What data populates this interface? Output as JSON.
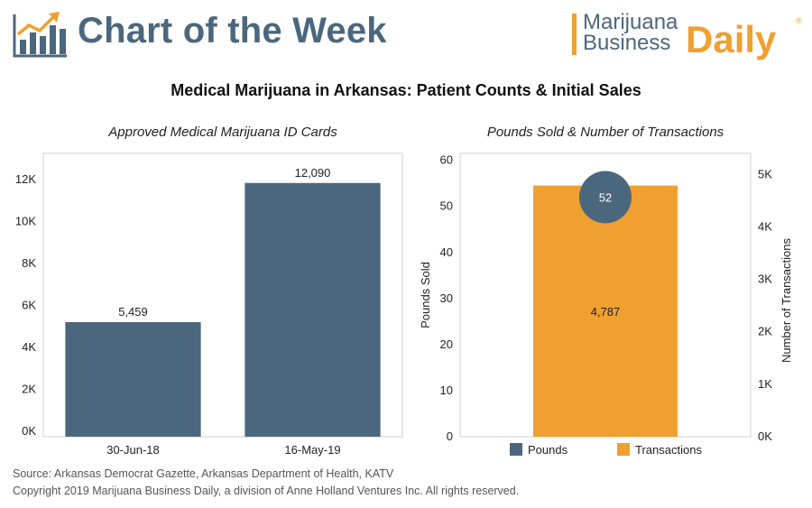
{
  "header": {
    "title": "Chart of the Week",
    "brand_line1": "Marijuana",
    "brand_line2": "Business",
    "brand_daily": "Daily",
    "brand_reg": "®"
  },
  "main_title": "Medical Marijuana in Arkansas: Patient Counts & Initial Sales",
  "colors": {
    "slate": "#4b677d",
    "orange": "#f0a030"
  },
  "chart_data": [
    {
      "type": "bar",
      "title": "Approved Medical Marijuana ID Cards",
      "categories": [
        "30-Jun-18",
        "16-May-19"
      ],
      "values": [
        5459,
        12090
      ],
      "value_labels": [
        "5,459",
        "12,090"
      ],
      "yticks": [
        0,
        2000,
        4000,
        6000,
        8000,
        10000,
        12000
      ],
      "ytick_labels": [
        "0K",
        "2K",
        "4K",
        "6K",
        "8K",
        "10K",
        "12K"
      ],
      "ylim": [
        0,
        13500
      ],
      "color": "#4b677d"
    },
    {
      "type": "bar",
      "title": "Pounds Sold & Number of Transactions",
      "ylabel": "Pounds Sold",
      "y2label": "Number of Transactions",
      "series": [
        {
          "name": "Pounds",
          "axis": "left",
          "values": [
            52
          ],
          "value_label": "52",
          "color": "#4b677d",
          "marker": "circle"
        },
        {
          "name": "Transactions",
          "axis": "right",
          "values": [
            4787
          ],
          "value_label": "4,787",
          "color": "#f0a030",
          "marker": "bar"
        }
      ],
      "yticks": [
        0,
        10,
        20,
        30,
        40,
        50,
        60
      ],
      "ylim": [
        0,
        61.5
      ],
      "y2ticks": [
        0,
        1000,
        2000,
        3000,
        4000,
        5000
      ],
      "y2tick_labels": [
        "0K",
        "1K",
        "2K",
        "3K",
        "4K",
        "5K"
      ],
      "y2lim": [
        0,
        5400
      ],
      "legend": [
        "Pounds",
        "Transactions"
      ],
      "legend_position": "bottom"
    }
  ],
  "source": "Source: Arkansas Democrat Gazette, Arkansas Department of Health, KATV",
  "copyright": "Copyright 2019 Marijuana Business Daily, a division of Anne Holland Ventures Inc. All rights reserved."
}
